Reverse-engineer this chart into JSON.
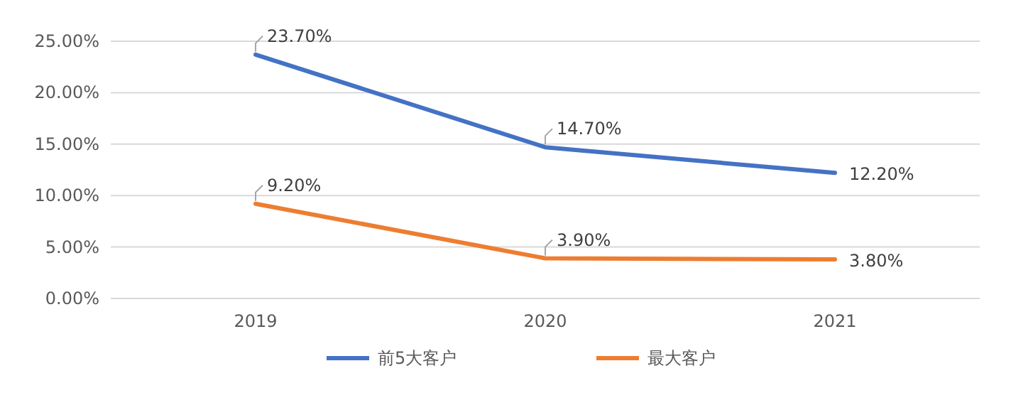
{
  "chart_data": {
    "type": "line",
    "categories": [
      "2019",
      "2020",
      "2021"
    ],
    "series": [
      {
        "name": "前5大客户",
        "color": "#4472c4",
        "values": [
          23.7,
          14.7,
          12.2
        ],
        "value_labels": [
          "23.70%",
          "14.70%",
          "12.20%"
        ]
      },
      {
        "name": "最大客户",
        "color": "#ed7d31",
        "values": [
          9.2,
          3.9,
          3.8
        ],
        "value_labels": [
          "9.20%",
          "3.90%",
          "3.80%"
        ]
      }
    ],
    "ylim": [
      0,
      25
    ],
    "yticks": [
      {
        "value": 0,
        "label": "0.00%"
      },
      {
        "value": 5,
        "label": "5.00%"
      },
      {
        "value": 10,
        "label": "10.00%"
      },
      {
        "value": 15,
        "label": "15.00%"
      },
      {
        "value": 20,
        "label": "20.00%"
      },
      {
        "value": 25,
        "label": "25.00%"
      }
    ],
    "grid": "y",
    "legend": "bottom",
    "marker": "none",
    "line_style": "solid"
  }
}
